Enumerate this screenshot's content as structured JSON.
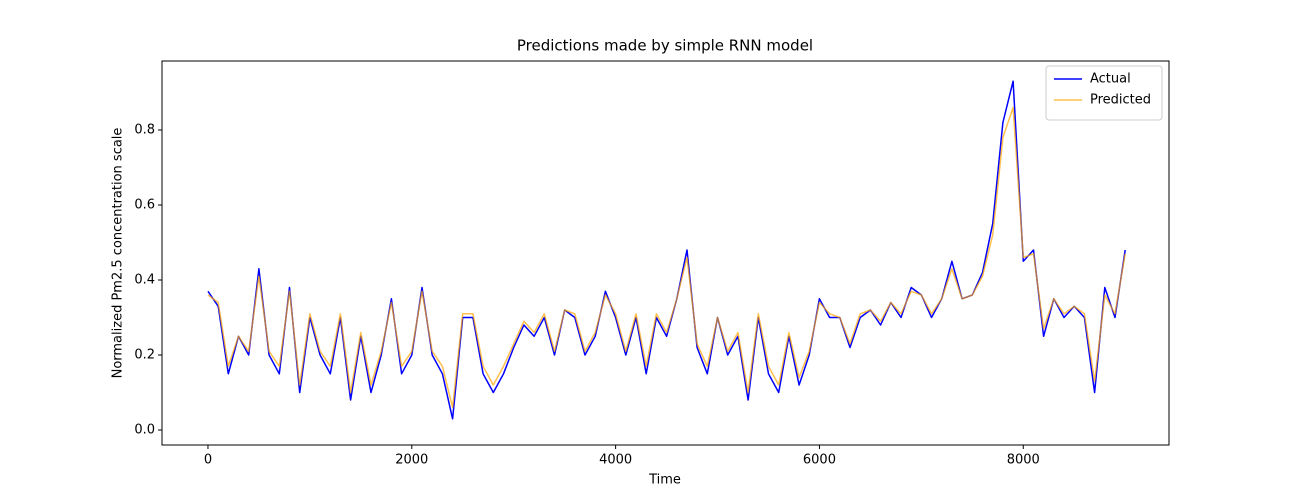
{
  "chart_data": {
    "type": "line",
    "title": "Predictions made by simple RNN model",
    "xlabel": "Time",
    "ylabel": "Normalized Pm2.5 concentration scale",
    "x": [
      0,
      100,
      200,
      300,
      400,
      500,
      600,
      700,
      800,
      900,
      1000,
      1100,
      1200,
      1300,
      1400,
      1500,
      1600,
      1700,
      1800,
      1900,
      2000,
      2100,
      2200,
      2300,
      2400,
      2500,
      2600,
      2700,
      2800,
      2900,
      3000,
      3100,
      3200,
      3300,
      3400,
      3500,
      3600,
      3700,
      3800,
      3900,
      4000,
      4100,
      4200,
      4300,
      4400,
      4500,
      4600,
      4700,
      4800,
      4900,
      5000,
      5100,
      5200,
      5300,
      5400,
      5500,
      5600,
      5700,
      5800,
      5900,
      6000,
      6100,
      6200,
      6300,
      6400,
      6500,
      6600,
      6700,
      6800,
      6900,
      7000,
      7100,
      7200,
      7300,
      7400,
      7500,
      7600,
      7700,
      7800,
      7900,
      8000,
      8100,
      8200,
      8300,
      8400,
      8500,
      8600,
      8700,
      8800,
      8900,
      9000
    ],
    "series": [
      {
        "name": "Actual",
        "color": "#0000ff",
        "values": [
          0.37,
          0.33,
          0.15,
          0.25,
          0.2,
          0.43,
          0.2,
          0.15,
          0.38,
          0.1,
          0.3,
          0.2,
          0.15,
          0.3,
          0.08,
          0.25,
          0.1,
          0.2,
          0.35,
          0.15,
          0.2,
          0.38,
          0.2,
          0.15,
          0.03,
          0.3,
          0.3,
          0.15,
          0.1,
          0.15,
          0.22,
          0.28,
          0.25,
          0.3,
          0.2,
          0.32,
          0.3,
          0.2,
          0.25,
          0.37,
          0.3,
          0.2,
          0.3,
          0.15,
          0.3,
          0.25,
          0.35,
          0.48,
          0.22,
          0.15,
          0.3,
          0.2,
          0.25,
          0.08,
          0.3,
          0.15,
          0.1,
          0.25,
          0.12,
          0.2,
          0.35,
          0.3,
          0.3,
          0.22,
          0.3,
          0.32,
          0.28,
          0.34,
          0.3,
          0.38,
          0.36,
          0.3,
          0.35,
          0.45,
          0.35,
          0.36,
          0.42,
          0.55,
          0.82,
          0.93,
          0.45,
          0.48,
          0.25,
          0.35,
          0.3,
          0.33,
          0.3,
          0.1,
          0.38,
          0.3,
          0.48
        ]
      },
      {
        "name": "Predicted",
        "color": "#ffa500",
        "values": [
          0.36,
          0.34,
          0.17,
          0.25,
          0.21,
          0.41,
          0.21,
          0.17,
          0.37,
          0.12,
          0.31,
          0.21,
          0.17,
          0.31,
          0.1,
          0.26,
          0.12,
          0.21,
          0.34,
          0.17,
          0.21,
          0.37,
          0.21,
          0.17,
          0.06,
          0.31,
          0.31,
          0.17,
          0.12,
          0.17,
          0.23,
          0.29,
          0.26,
          0.31,
          0.21,
          0.32,
          0.31,
          0.21,
          0.26,
          0.36,
          0.31,
          0.21,
          0.31,
          0.17,
          0.31,
          0.26,
          0.35,
          0.46,
          0.23,
          0.17,
          0.3,
          0.21,
          0.26,
          0.1,
          0.31,
          0.17,
          0.12,
          0.26,
          0.14,
          0.21,
          0.34,
          0.31,
          0.3,
          0.23,
          0.31,
          0.32,
          0.29,
          0.34,
          0.31,
          0.37,
          0.36,
          0.31,
          0.35,
          0.43,
          0.35,
          0.36,
          0.41,
          0.52,
          0.78,
          0.86,
          0.46,
          0.47,
          0.27,
          0.35,
          0.31,
          0.33,
          0.31,
          0.13,
          0.36,
          0.31,
          0.47
        ]
      }
    ],
    "xlim": [
      -451,
      9430
    ],
    "ylim": [
      -0.04,
      0.984
    ],
    "xticks": [
      0,
      2000,
      4000,
      6000,
      8000
    ],
    "yticks": [
      {
        "value": 0,
        "label": "0.0"
      },
      0.2,
      0.4,
      0.6,
      0.8
    ],
    "legend": "upper right"
  }
}
